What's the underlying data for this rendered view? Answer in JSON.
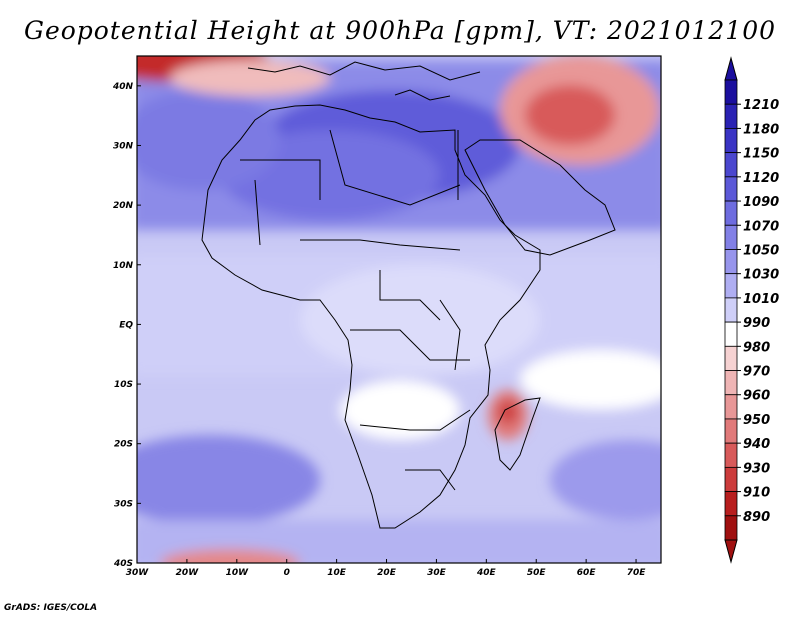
{
  "title": "Geopotential Height at 900hPa [gpm], VT: 2021012100",
  "credit": "GrADS: IGES/COLA",
  "map": {
    "region": "Africa",
    "lon_range": [
      -30,
      75
    ],
    "lat_range": [
      -40,
      45
    ],
    "x_ticks": [
      "30W",
      "20W",
      "10W",
      "0",
      "10E",
      "20E",
      "30E",
      "40E",
      "50E",
      "60E",
      "70E"
    ],
    "y_ticks": [
      "40N",
      "30N",
      "20N",
      "10N",
      "EQ",
      "10S",
      "20S",
      "30S",
      "40S"
    ]
  },
  "colorbar": {
    "levels": [
      "1210",
      "1180",
      "1150",
      "1120",
      "1090",
      "1070",
      "1050",
      "1030",
      "1010",
      "990",
      "980",
      "970",
      "960",
      "950",
      "940",
      "930",
      "910",
      "890"
    ],
    "colors": [
      "#1b0f9e",
      "#2a22b3",
      "#3a34c4",
      "#4b47cf",
      "#5c59d8",
      "#6e6cdf",
      "#8280e6",
      "#9795ec",
      "#afaef2",
      "#cfcff8",
      "#ffffff",
      "#f6d2d2",
      "#efb5b5",
      "#e89797",
      "#e17a7a",
      "#d85a5a",
      "#cc3c3c",
      "#b81e1e",
      "#a01010"
    ]
  }
}
